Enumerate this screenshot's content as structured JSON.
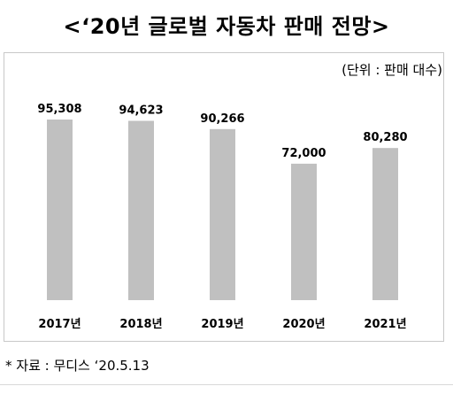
{
  "title": "<‘20년 글로벌 자동차 판매 전망>",
  "unit_label": "(단위 : 판매 대수)",
  "source_note": "* 자료 : 무디스 ‘20.5.13",
  "colors": {
    "bar": "#c0c0c0",
    "frame": "#c8c8c8",
    "text": "#000000"
  },
  "chart_data": {
    "type": "bar",
    "title": "<‘20년 글로벌 자동차 판매 전망>",
    "categories": [
      "2017년",
      "2018년",
      "2019년",
      "2020년",
      "2021년"
    ],
    "values": [
      95308,
      94623,
      90266,
      72000,
      80280
    ],
    "value_labels": [
      "95,308",
      "94,623",
      "90,266",
      "72,000",
      "80,280"
    ],
    "xlabel": "",
    "ylabel": "",
    "grid": false,
    "legend": "none"
  }
}
